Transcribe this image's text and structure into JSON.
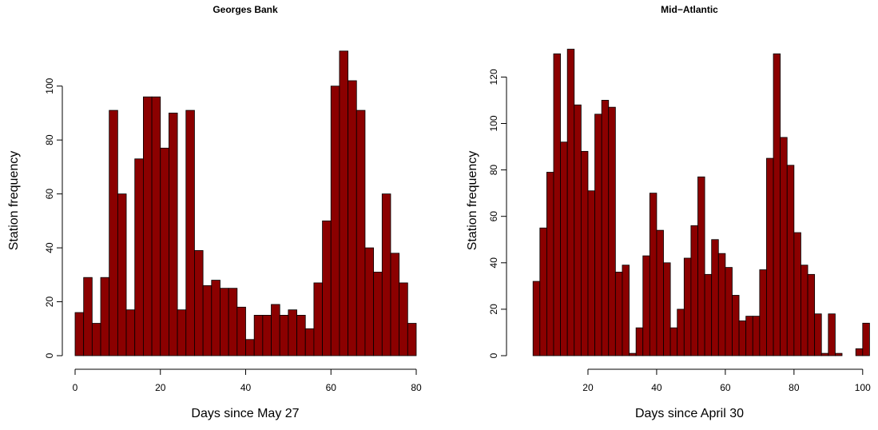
{
  "chart_data": [
    {
      "type": "histogram",
      "title": "Georges Bank",
      "x_label": "Days since May 27",
      "y_label": "Station frequency",
      "color": "#8b0000",
      "bins": [
        0,
        2,
        4,
        6,
        8,
        10,
        12,
        14,
        16,
        18,
        20,
        22,
        24,
        26,
        28,
        30,
        32,
        34,
        36,
        38,
        40,
        42,
        44,
        46,
        48,
        50,
        52,
        54,
        56,
        58,
        60,
        62,
        64,
        66,
        68,
        70,
        72,
        74,
        76,
        78,
        80
      ],
      "values": [
        16,
        29,
        12,
        29,
        91,
        60,
        17,
        73,
        96,
        96,
        77,
        90,
        17,
        91,
        39,
        26,
        28,
        25,
        25,
        18,
        6,
        15,
        15,
        19,
        15,
        17,
        15,
        10,
        27,
        50,
        100,
        113,
        102,
        91,
        40,
        31,
        60,
        38,
        27,
        12
      ],
      "xlim": [
        0,
        80
      ],
      "ylim": [
        0,
        118
      ],
      "xticks": [
        0,
        20,
        40,
        60,
        80
      ],
      "yticks": [
        0,
        20,
        40,
        60,
        80,
        100
      ]
    },
    {
      "type": "histogram",
      "title": "Mid−Atlantic",
      "x_label": "Days since April 30",
      "y_label": "Station frequency",
      "color": "#8b0000",
      "bins": [
        4,
        6,
        8,
        10,
        12,
        14,
        16,
        18,
        20,
        22,
        24,
        26,
        28,
        30,
        32,
        34,
        36,
        38,
        40,
        42,
        44,
        46,
        48,
        50,
        52,
        54,
        56,
        58,
        60,
        62,
        64,
        66,
        68,
        70,
        72,
        74,
        76,
        78,
        80,
        82,
        84,
        86,
        88,
        90,
        92,
        94,
        96,
        98,
        100,
        102
      ],
      "values": [
        32,
        55,
        79,
        130,
        92,
        132,
        108,
        88,
        71,
        104,
        110,
        107,
        36,
        39,
        1,
        12,
        43,
        70,
        54,
        40,
        12,
        20,
        42,
        56,
        77,
        35,
        50,
        44,
        38,
        26,
        15,
        17,
        17,
        37,
        85,
        130,
        94,
        82,
        53,
        39,
        35,
        18,
        1,
        18,
        1,
        0,
        0,
        3,
        14
      ],
      "xlim": [
        0,
        104
      ],
      "ylim": [
        0,
        137
      ],
      "xticks": [
        20,
        40,
        60,
        80,
        100
      ],
      "yticks": [
        0,
        20,
        40,
        60,
        80,
        100,
        120
      ]
    }
  ]
}
